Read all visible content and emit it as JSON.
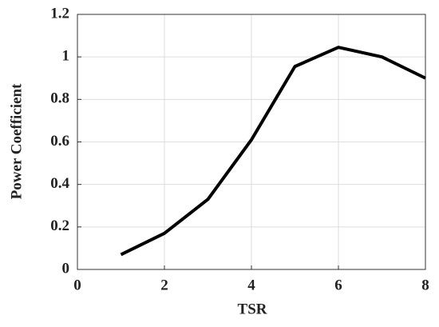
{
  "chart_data": {
    "type": "line",
    "xlabel": "TSR",
    "ylabel": "Power Coefficient",
    "x": [
      1,
      2,
      3,
      4,
      5,
      6,
      7,
      8
    ],
    "values": [
      0.07,
      0.17,
      0.33,
      0.61,
      0.955,
      1.045,
      1.0,
      0.9
    ],
    "color": "#000000",
    "xlim": [
      0,
      8
    ],
    "xticks": [
      0,
      2,
      4,
      6,
      8
    ],
    "ylim": [
      0,
      1.2
    ],
    "yticks": [
      0,
      0.2,
      0.4,
      0.6,
      0.8,
      1,
      1.2
    ],
    "grid": true
  }
}
